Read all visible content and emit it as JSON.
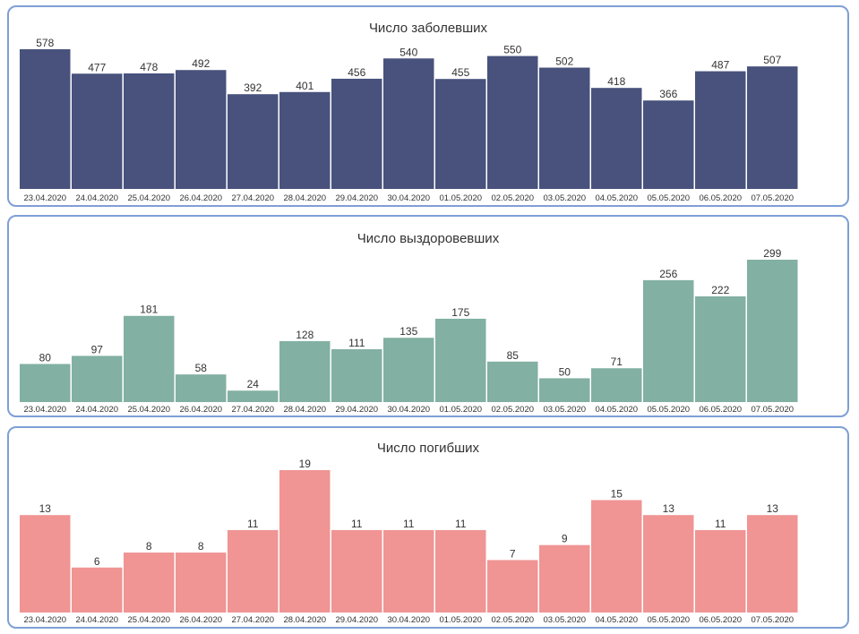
{
  "chart_data": [
    {
      "type": "bar",
      "title": "Число заболевших",
      "color": "#48527c",
      "categories": [
        "23.04.2020",
        "24.04.2020",
        "25.04.2020",
        "26.04.2020",
        "27.04.2020",
        "28.04.2020",
        "29.04.2020",
        "30.04.2020",
        "01.05.2020",
        "02.05.2020",
        "03.05.2020",
        "04.05.2020",
        "05.05.2020",
        "06.05.2020",
        "07.05.2020"
      ],
      "values": [
        578,
        477,
        478,
        492,
        392,
        401,
        456,
        540,
        455,
        550,
        502,
        418,
        366,
        487,
        507
      ],
      "ylim": [
        0,
        578
      ]
    },
    {
      "type": "bar",
      "title": "Число выздоровевших",
      "color": "#82b0a3",
      "categories": [
        "23.04.2020",
        "24.04.2020",
        "25.04.2020",
        "26.04.2020",
        "27.04.2020",
        "28.04.2020",
        "29.04.2020",
        "30.04.2020",
        "01.05.2020",
        "02.05.2020",
        "03.05.2020",
        "04.05.2020",
        "05.05.2020",
        "06.05.2020",
        "07.05.2020"
      ],
      "values": [
        80,
        97,
        181,
        58,
        24,
        128,
        111,
        135,
        175,
        85,
        50,
        71,
        256,
        222,
        299
      ],
      "ylim": [
        0,
        299
      ]
    },
    {
      "type": "bar",
      "title": "Число погибших",
      "color": "#f09494",
      "categories": [
        "23.04.2020",
        "24.04.2020",
        "25.04.2020",
        "26.04.2020",
        "27.04.2020",
        "28.04.2020",
        "29.04.2020",
        "30.04.2020",
        "01.05.2020",
        "02.05.2020",
        "03.05.2020",
        "04.05.2020",
        "05.05.2020",
        "06.05.2020",
        "07.05.2020"
      ],
      "values": [
        13,
        6,
        8,
        8,
        11,
        19,
        11,
        11,
        11,
        7,
        9,
        15,
        13,
        11,
        13
      ],
      "ylim": [
        0,
        19
      ]
    }
  ]
}
